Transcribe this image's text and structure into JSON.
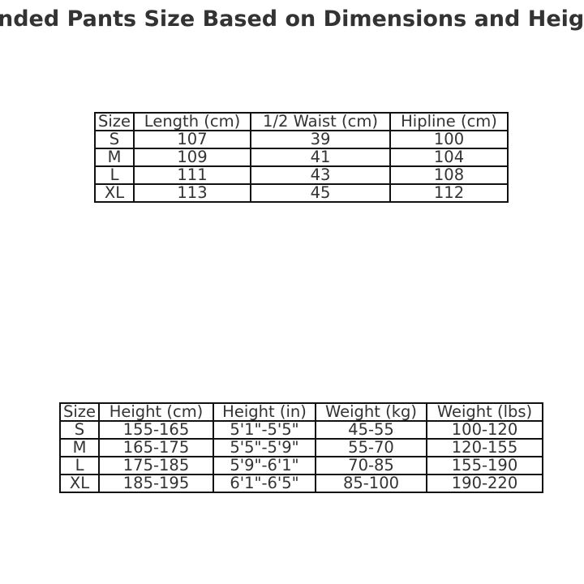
{
  "title": "nded Pants Size Based on Dimensions and Heig",
  "chart_data": [
    {
      "type": "table",
      "columns": [
        "Size",
        "Length (cm)",
        "1/2 Waist (cm)",
        "Hipline (cm)"
      ],
      "rows": [
        [
          "S",
          "107",
          "39",
          "100"
        ],
        [
          "M",
          "109",
          "41",
          "104"
        ],
        [
          "L",
          "111",
          "43",
          "108"
        ],
        [
          "XL",
          "113",
          "45",
          "112"
        ]
      ]
    },
    {
      "type": "table",
      "columns": [
        "Size",
        "Height (cm)",
        "Height (in)",
        "Weight (kg)",
        "Weight (lbs)"
      ],
      "rows": [
        [
          "S",
          "155-165",
          "5'1\"-5'5\"",
          "45-55",
          "100-120"
        ],
        [
          "M",
          "165-175",
          "5'5\"-5'9\"",
          "55-70",
          "120-155"
        ],
        [
          "L",
          "175-185",
          "5'9\"-6'1\"",
          "70-85",
          "155-190"
        ],
        [
          "XL",
          "185-195",
          "6'1\"-6'5\"",
          "85-100",
          "190-220"
        ]
      ]
    }
  ]
}
